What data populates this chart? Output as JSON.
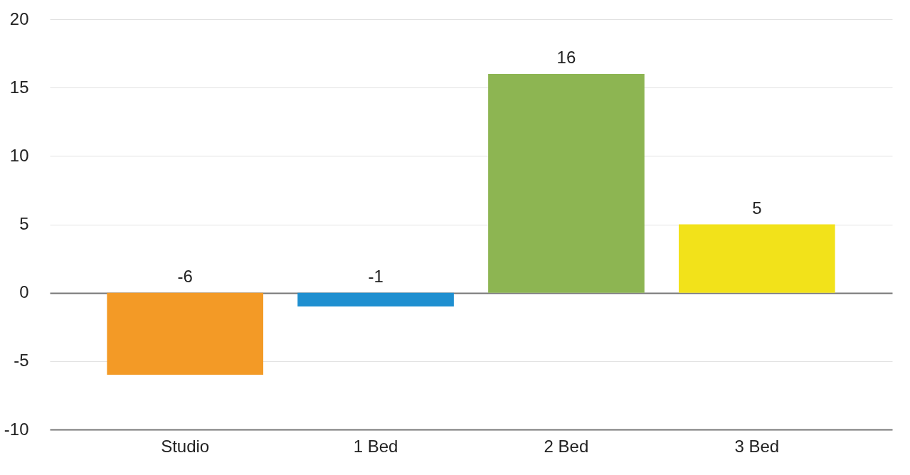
{
  "chart_data": {
    "type": "bar",
    "categories": [
      "Studio",
      "1 Bed",
      "2 Bed",
      "3 Bed"
    ],
    "values": [
      -6,
      -1,
      16,
      5
    ],
    "colors": [
      "#f39a26",
      "#1f8fd0",
      "#8db552",
      "#f2e21a"
    ],
    "ylim": [
      -10,
      20
    ],
    "yticks": [
      -10,
      -5,
      0,
      5,
      10,
      15,
      20
    ],
    "grid": "y",
    "data_labels": true
  }
}
